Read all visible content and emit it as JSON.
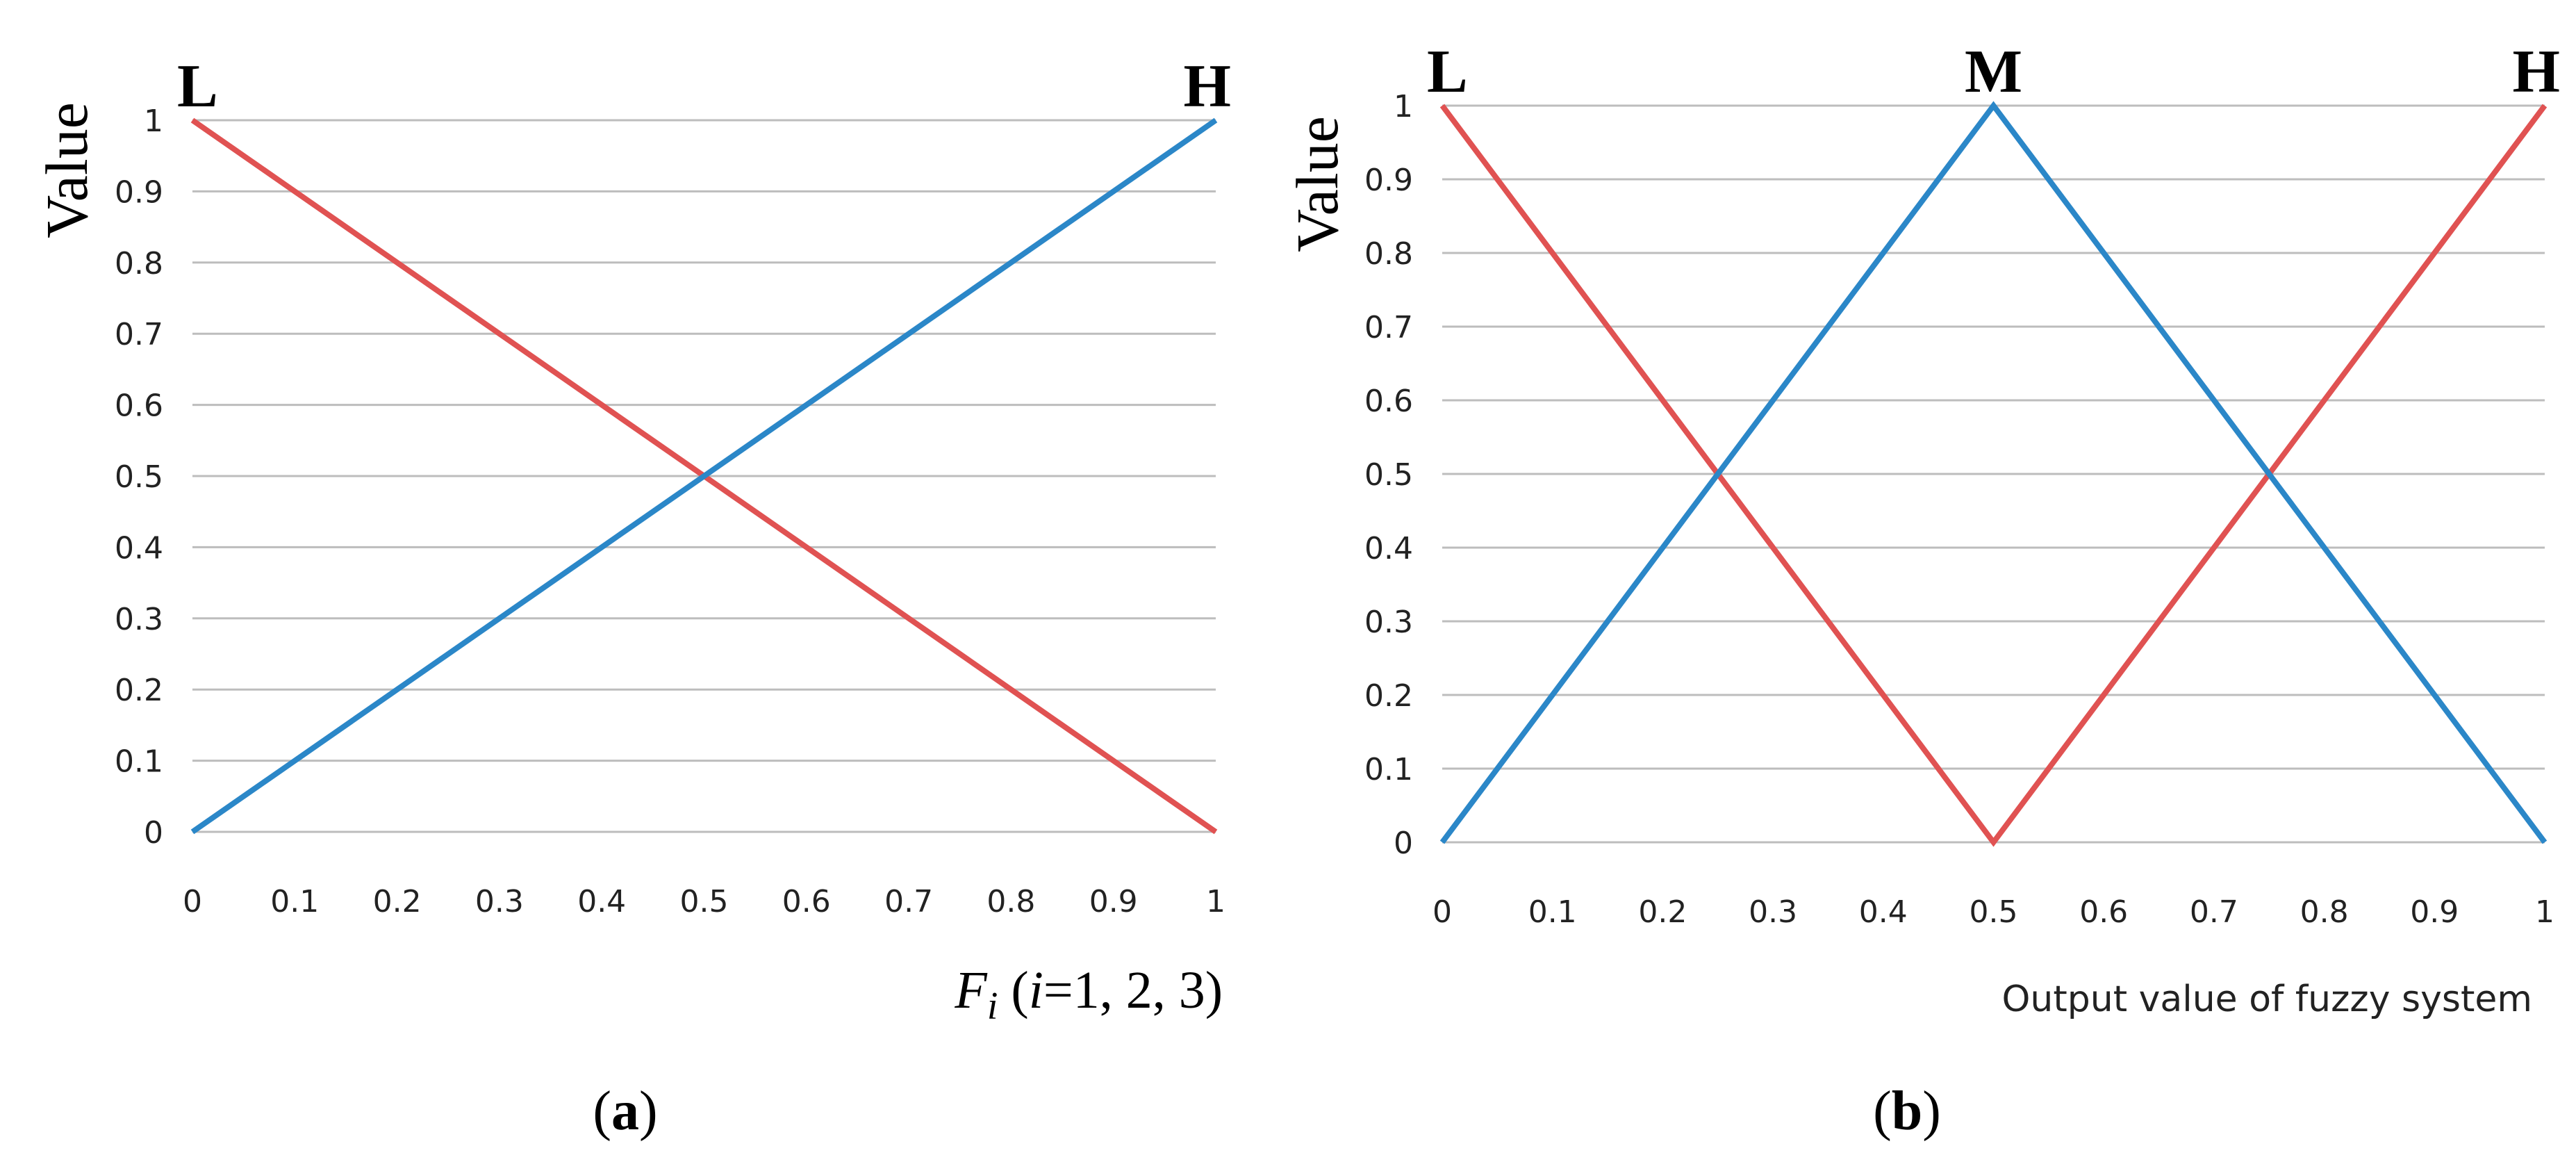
{
  "chart_data": [
    {
      "type": "line",
      "panel_label": {
        "open": "(",
        "letter": "a",
        "close": ")"
      },
      "ylabel": "Value",
      "xlabel": {
        "var": "F",
        "sub": "i",
        "rest_open": " (",
        "i": "i",
        "rest_close": "=1, 2, 3)"
      },
      "xlim": [
        0,
        1
      ],
      "ylim": [
        0,
        1
      ],
      "x_ticks": [
        "0",
        "0.1",
        "0.2",
        "0.3",
        "0.4",
        "0.5",
        "0.6",
        "0.7",
        "0.8",
        "0.9",
        "1"
      ],
      "y_ticks": [
        "0",
        "0.1",
        "0.2",
        "0.3",
        "0.4",
        "0.5",
        "0.6",
        "0.7",
        "0.8",
        "0.9",
        "1"
      ],
      "grid": "horizontal",
      "annotations": [
        {
          "text": "L",
          "x": 0
        },
        {
          "text": "H",
          "x": 1
        }
      ],
      "series": [
        {
          "color": "#e05252",
          "x": [
            0,
            1
          ],
          "y": [
            1,
            0
          ]
        },
        {
          "color": "#2b87c8",
          "x": [
            0,
            1
          ],
          "y": [
            0,
            1
          ]
        }
      ]
    },
    {
      "type": "line",
      "panel_label": {
        "open": "(",
        "letter": "b",
        "close": ")"
      },
      "ylabel": "Value",
      "xlabel": "Output value of fuzzy system",
      "xlim": [
        0,
        1
      ],
      "ylim": [
        0,
        1
      ],
      "x_ticks": [
        "0",
        "0.1",
        "0.2",
        "0.3",
        "0.4",
        "0.5",
        "0.6",
        "0.7",
        "0.8",
        "0.9",
        "1"
      ],
      "y_ticks": [
        "0",
        "0.1",
        "0.2",
        "0.3",
        "0.4",
        "0.5",
        "0.6",
        "0.7",
        "0.8",
        "0.9",
        "1"
      ],
      "grid": "horizontal",
      "annotations": [
        {
          "text": "L",
          "x": 0
        },
        {
          "text": "M",
          "x": 0.5
        },
        {
          "text": "H",
          "x": 1
        }
      ],
      "series": [
        {
          "color": "#e05252",
          "x": [
            0,
            0.5,
            1
          ],
          "y": [
            1,
            0,
            1
          ]
        },
        {
          "color": "#2b87c8",
          "x": [
            0,
            0.5,
            1
          ],
          "y": [
            0,
            1,
            0
          ]
        }
      ]
    }
  ]
}
